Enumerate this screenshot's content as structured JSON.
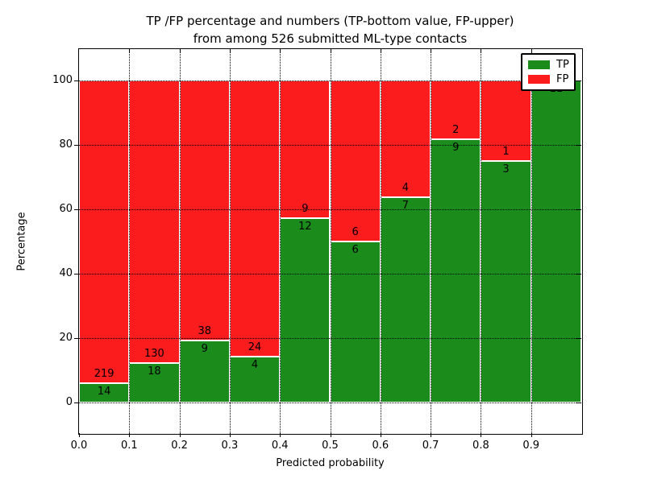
{
  "title": {
    "line1": "TP /FP percentage and numbers (TP-bottom value, FP-upper)",
    "line2": "from among 526 submitted ML-type contacts"
  },
  "axes": {
    "xlabel": "Predicted probability",
    "ylabel": "Percentage",
    "x_tick_labels": [
      "0.0",
      "0.1",
      "0.2",
      "0.3",
      "0.4",
      "0.5",
      "0.6",
      "0.7",
      "0.8",
      "0.9"
    ],
    "y_tick_labels": [
      "0",
      "20",
      "40",
      "60",
      "80",
      "100"
    ],
    "y_tick_values": [
      0,
      20,
      40,
      60,
      80,
      100
    ],
    "grid": "dotted"
  },
  "legend": {
    "position": "upper right",
    "items": [
      {
        "label": "TP",
        "color": "#1b8c1b"
      },
      {
        "label": "FP",
        "color": "#fb1d1d"
      }
    ]
  },
  "colors": {
    "tp_green": "#1b8c1b",
    "fp_red": "#fb1d1d",
    "bar_edge": "#ffffff",
    "text": "#000000",
    "background": "#ffffff"
  },
  "chart_data": {
    "type": "bar",
    "stacked": true,
    "normalized_to_percent": true,
    "title": "TP /FP percentage and numbers (TP-bottom value, FP-upper) from among 526 submitted ML-type contacts",
    "xlabel": "Predicted probability",
    "ylabel": "Percentage",
    "bin_width": 0.1,
    "bin_starts": [
      0.0,
      0.1,
      0.2,
      0.3,
      0.4,
      0.5,
      0.6,
      0.7,
      0.8,
      0.9
    ],
    "x_range": [
      0.0,
      1.0
    ],
    "ylim": [
      -10,
      110
    ],
    "series": [
      {
        "name": "TP",
        "color": "#1b8c1b",
        "values": [
          14,
          18,
          9,
          4,
          12,
          6,
          7,
          9,
          3,
          11
        ]
      },
      {
        "name": "FP",
        "color": "#fb1d1d",
        "values": [
          219,
          130,
          38,
          24,
          9,
          6,
          4,
          2,
          1,
          0
        ]
      }
    ],
    "total_contacts": 526,
    "legend_position": "upper right",
    "grid": true
  }
}
